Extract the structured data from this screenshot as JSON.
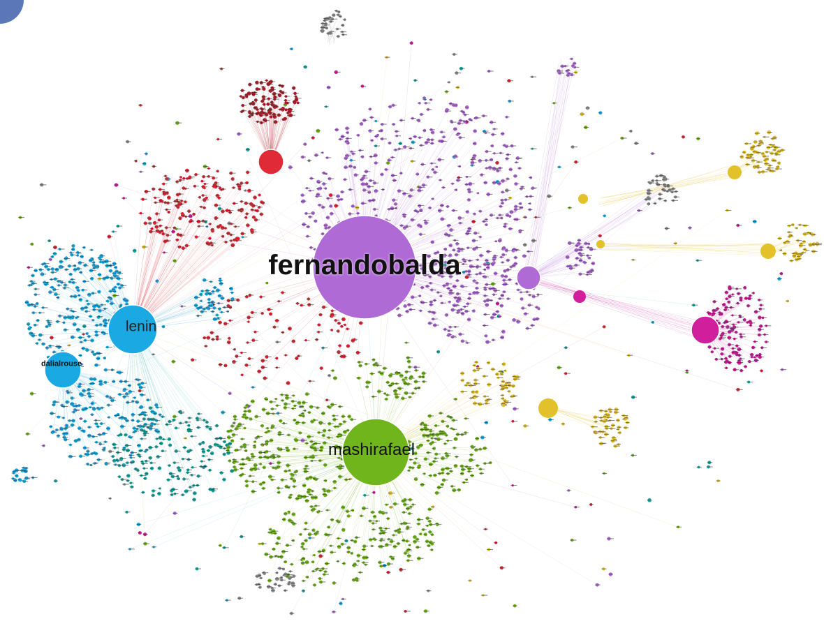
{
  "diagram": {
    "type": "social-network-graph",
    "colors": {
      "purple": "#b06ad6",
      "red": "#e02a35",
      "dark_red": "#b21f2c",
      "blue": "#1aa9e3",
      "teal": "#19a6a0",
      "green": "#71b51c",
      "yellow": "#e3c12a",
      "magenta": "#d01e9c",
      "gray": "#8f8f8f",
      "corner": "#5b77b8"
    },
    "hubs": [
      {
        "id": "fernandobalda",
        "label": "fernandobalda",
        "color": "purple"
      },
      {
        "id": "lenin",
        "label": "lenin",
        "color": "blue"
      },
      {
        "id": "mashirafael",
        "label": "mashirafael",
        "color": "green"
      },
      {
        "id": "dalia",
        "label": "dalialrouse",
        "color": "blue"
      },
      {
        "id": "red-hub",
        "label": "",
        "color": "red"
      },
      {
        "id": "magenta-hub",
        "label": "",
        "color": "magenta"
      },
      {
        "id": "small-purple-hub",
        "label": "",
        "color": "purple"
      }
    ]
  }
}
